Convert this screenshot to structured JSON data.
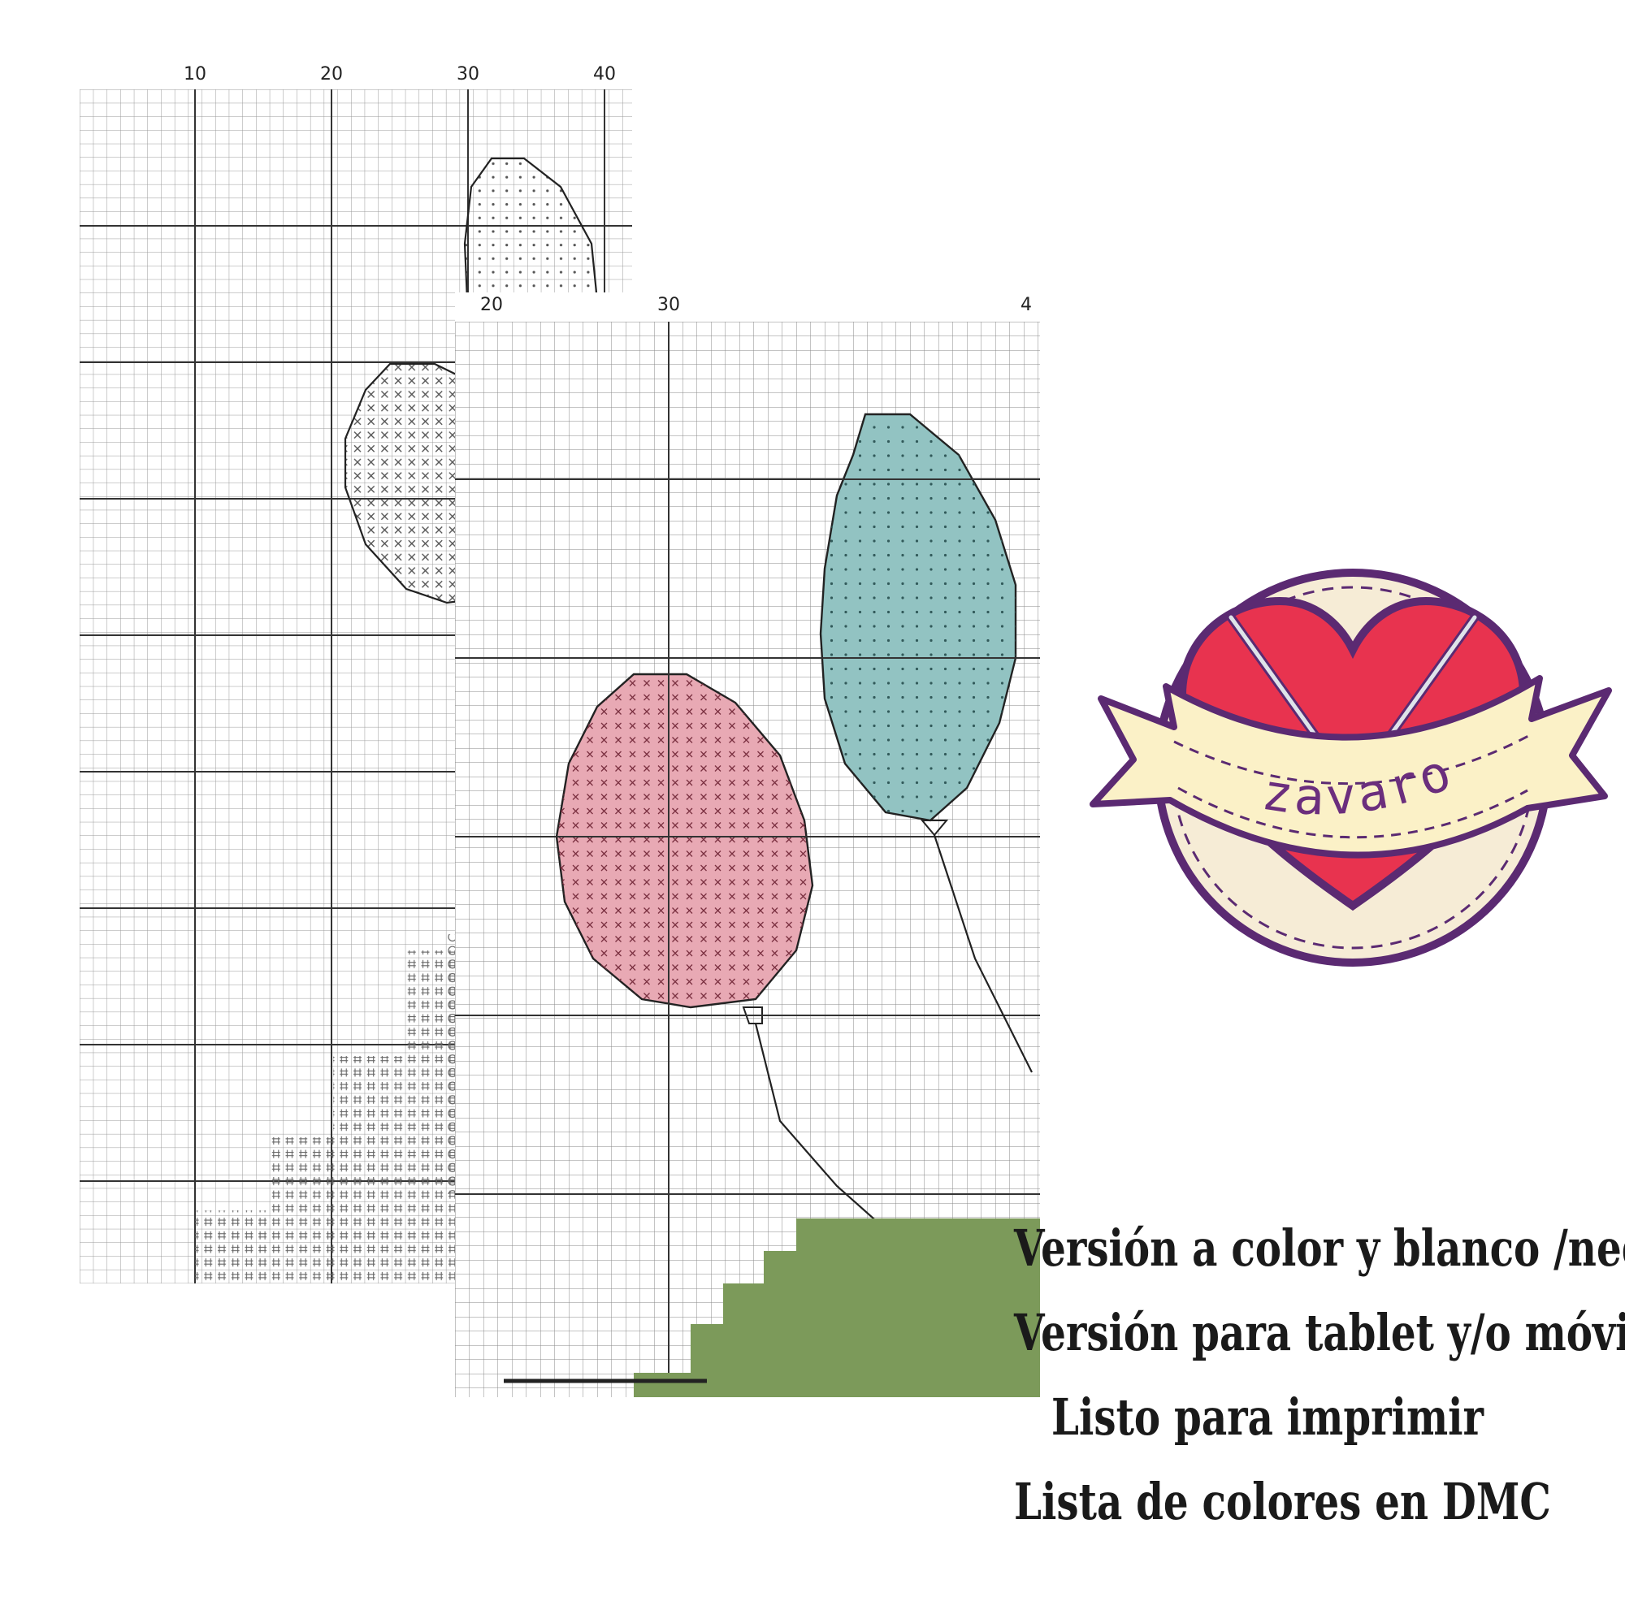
{
  "bw_chart": {
    "ticks": [
      "10",
      "20",
      "30",
      "40"
    ]
  },
  "color_chart": {
    "ticks": [
      "20",
      "30",
      "4"
    ],
    "colors": {
      "teal": "#92c3c2",
      "pink": "#e8a9b4",
      "green": "#7c9a5a"
    }
  },
  "logo": {
    "text": "zavaro",
    "colors": {
      "heart": "#e8334f",
      "ribbon": "#fbf1c7",
      "outline": "#5b2a72",
      "badge": "#f6ecd6"
    },
    "icons": [
      "needle-icon",
      "heart-icon"
    ]
  },
  "features": [
    "Versión a color y blanco /negro",
    "Versión para tablet y/o móvil",
    "Listo para imprimir",
    "Lista de colores en DMC"
  ]
}
